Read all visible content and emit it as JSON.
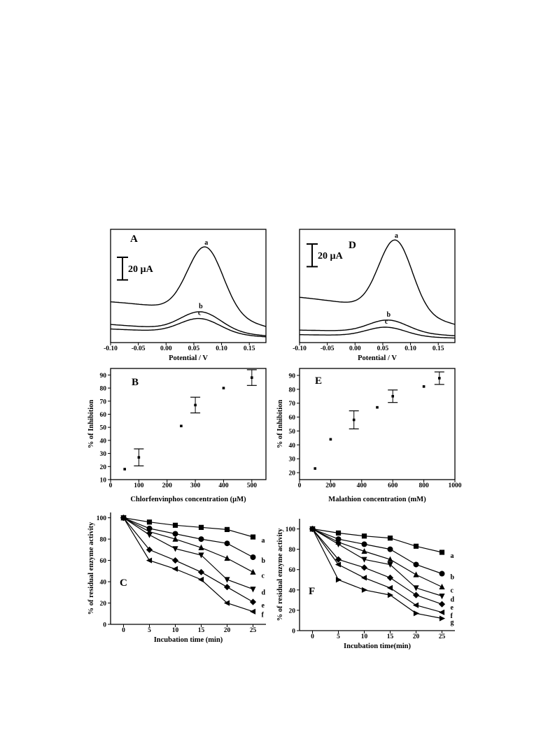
{
  "chart_data": [
    {
      "id": "A",
      "type": "line",
      "panel_label": "A",
      "xlabel": "Potential / V",
      "ylabel": "",
      "xlim": [
        -0.1,
        0.18
      ],
      "xticks": [
        "-0.10",
        "-0.05",
        "0.00",
        "0.05",
        "0.10",
        "0.15"
      ],
      "xtick_values": [
        -0.1,
        -0.05,
        0.0,
        0.05,
        0.1,
        0.15
      ],
      "ylim": [
        0,
        100
      ],
      "scale_bar": {
        "label": "20 µA",
        "value": 20
      },
      "series": [
        {
          "name": "a",
          "base": [
            36,
            31,
            14
          ],
          "peak": {
            "x": 0.071,
            "height": 59,
            "sigma": 0.032
          }
        },
        {
          "name": "b",
          "base": [
            16,
            11,
            6
          ],
          "peak": {
            "x": 0.063,
            "height": 17,
            "sigma": 0.036
          }
        },
        {
          "name": "c",
          "base": [
            12,
            9,
            5
          ],
          "peak": {
            "x": 0.061,
            "height": 13,
            "sigma": 0.036
          }
        }
      ]
    },
    {
      "id": "D",
      "type": "line",
      "panel_label": "D",
      "xlabel": "Potential / V",
      "ylabel": "",
      "xlim": [
        -0.1,
        0.18
      ],
      "xticks": [
        "-0.10",
        "-0.05",
        "0.00",
        "0.05",
        "0.10",
        "0.15"
      ],
      "xtick_values": [
        -0.1,
        -0.05,
        0.0,
        0.05,
        0.1,
        0.15
      ],
      "ylim": [
        0,
        100
      ],
      "scale_bar": {
        "label": "20 µA",
        "value": 20
      },
      "series": [
        {
          "name": "a",
          "base": [
            40,
            33,
            16
          ],
          "peak": {
            "x": 0.073,
            "height": 63,
            "sigma": 0.03
          }
        },
        {
          "name": "b",
          "base": [
            11,
            10,
            6
          ],
          "peak": {
            "x": 0.06,
            "height": 11,
            "sigma": 0.035
          }
        },
        {
          "name": "c",
          "base": [
            7,
            6,
            4
          ],
          "peak": {
            "x": 0.056,
            "height": 8,
            "sigma": 0.035
          }
        }
      ]
    },
    {
      "id": "B",
      "type": "scatter",
      "panel_label": "B",
      "xlabel": "Chlorfenvinphos concentration (µM)",
      "ylabel": "% of Inhibition",
      "xlim": [
        0,
        550
      ],
      "ylim": [
        10,
        95
      ],
      "xticks": [
        "0",
        "100",
        "200",
        "300",
        "400",
        "500"
      ],
      "xtick_values": [
        0,
        100,
        200,
        300,
        400,
        500
      ],
      "yticks": [
        "10",
        "20",
        "30",
        "40",
        "50",
        "60",
        "70",
        "80",
        "90"
      ],
      "ytick_values": [
        10,
        20,
        30,
        40,
        50,
        60,
        70,
        80,
        90
      ],
      "x": [
        50,
        100,
        250,
        300,
        400,
        500
      ],
      "y": [
        18,
        27,
        51,
        67,
        80,
        88
      ],
      "error": [
        0,
        6.5,
        0,
        6,
        0,
        6
      ]
    },
    {
      "id": "E",
      "type": "scatter",
      "panel_label": "E",
      "xlabel": "Malathion concentration (mM)",
      "ylabel": "% of Inhibition",
      "xlim": [
        0,
        1000
      ],
      "ylim": [
        15,
        95
      ],
      "xticks": [
        "0",
        "200",
        "400",
        "600",
        "800",
        "1000"
      ],
      "xtick_values": [
        0,
        200,
        400,
        600,
        800,
        1000
      ],
      "yticks": [
        "20",
        "30",
        "40",
        "50",
        "60",
        "70",
        "80",
        "90"
      ],
      "ytick_values": [
        20,
        30,
        40,
        50,
        60,
        70,
        80,
        90
      ],
      "x": [
        100,
        200,
        350,
        500,
        600,
        800,
        900
      ],
      "y": [
        23,
        44,
        58,
        67,
        75,
        82,
        88
      ],
      "error": [
        0,
        0,
        6.5,
        0,
        4.5,
        0,
        4.5
      ]
    },
    {
      "id": "C",
      "type": "line",
      "panel_label": "C",
      "xlabel": "Incubation time (min)",
      "ylabel": "% of residual enzyme activity",
      "xlim": [
        -2.5,
        27.5
      ],
      "ylim": [
        0,
        105
      ],
      "xticks": [
        "0",
        "5",
        "10",
        "15",
        "20",
        "25"
      ],
      "xtick_values": [
        0,
        5,
        10,
        15,
        20,
        25
      ],
      "yticks": [
        "0",
        "20",
        "40",
        "60",
        "80",
        "100"
      ],
      "ytick_values": [
        0,
        20,
        40,
        60,
        80,
        100
      ],
      "x": [
        0,
        5,
        10,
        15,
        20,
        25
      ],
      "series": [
        {
          "name": "a",
          "marker": "square",
          "values": [
            100,
            96,
            93,
            91,
            89,
            82
          ]
        },
        {
          "name": "b",
          "marker": "circle",
          "values": [
            100,
            90,
            85,
            80,
            76,
            63
          ]
        },
        {
          "name": "c",
          "marker": "triangle-up",
          "values": [
            100,
            87,
            80,
            72,
            62,
            49
          ]
        },
        {
          "name": "d",
          "marker": "triangle-down",
          "values": [
            100,
            84,
            71,
            65,
            42,
            33
          ]
        },
        {
          "name": "e",
          "marker": "diamond",
          "values": [
            100,
            70,
            60,
            49,
            35,
            21
          ]
        },
        {
          "name": "f",
          "marker": "triangle-left",
          "values": [
            100,
            60,
            52,
            42,
            20,
            12
          ]
        }
      ]
    },
    {
      "id": "F",
      "type": "line",
      "panel_label": "F",
      "xlabel": "Incubation time(min)",
      "ylabel": "% of residual enzyme activity",
      "xlim": [
        -2.5,
        27.5
      ],
      "ylim": [
        0,
        110
      ],
      "xticks": [
        "0",
        "5",
        "10",
        "15",
        "20",
        "25"
      ],
      "xtick_values": [
        0,
        5,
        10,
        15,
        20,
        25
      ],
      "yticks": [
        "0",
        "20",
        "40",
        "60",
        "80",
        "100"
      ],
      "ytick_values": [
        0,
        20,
        40,
        60,
        80,
        100
      ],
      "x": [
        0,
        5,
        10,
        15,
        20,
        25
      ],
      "series": [
        {
          "name": "a",
          "marker": "square",
          "values": [
            100,
            96,
            93,
            91,
            83,
            77
          ]
        },
        {
          "name": "b",
          "marker": "circle",
          "values": [
            100,
            90,
            85,
            80,
            65,
            56
          ]
        },
        {
          "name": "c",
          "marker": "triangle-up",
          "values": [
            100,
            87,
            78,
            70,
            55,
            43
          ]
        },
        {
          "name": "d",
          "marker": "triangle-down",
          "values": [
            100,
            85,
            70,
            65,
            42,
            34
          ]
        },
        {
          "name": "e",
          "marker": "diamond",
          "values": [
            100,
            70,
            62,
            52,
            35,
            26
          ]
        },
        {
          "name": "f",
          "marker": "triangle-left",
          "values": [
            100,
            65,
            52,
            42,
            25,
            18
          ]
        },
        {
          "name": "g",
          "marker": "triangle-right",
          "values": [
            100,
            50,
            40,
            35,
            17,
            12
          ]
        }
      ]
    }
  ]
}
